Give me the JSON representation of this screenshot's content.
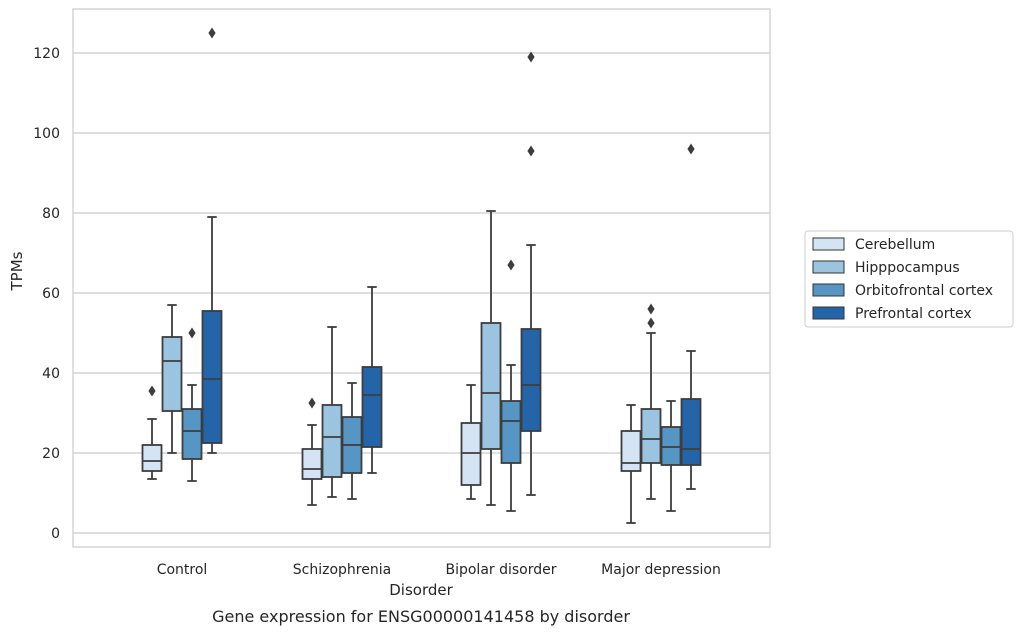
{
  "chart_data": {
    "type": "box",
    "caption": "Gene expression for ENSG00000141458 by disorder",
    "xlabel": "Disorder",
    "ylabel": "TPMs",
    "ylim": [
      -3.5,
      131
    ],
    "yticks": [
      0,
      20,
      40,
      60,
      80,
      100,
      120
    ],
    "grid": "horizontal",
    "legend_position": "right",
    "categories": [
      "Control",
      "Schizophrenia",
      "Bipolar disorder",
      "Major depression"
    ],
    "series": [
      {
        "name": "Cerebellum",
        "color": "#d4e4f4",
        "boxes": [
          {
            "whisker_low": 13.5,
            "q1": 15.5,
            "median": 18,
            "q3": 22,
            "whisker_high": 28.5,
            "outliers": [
              35.5
            ]
          },
          {
            "whisker_low": 7,
            "q1": 13.5,
            "median": 16,
            "q3": 21,
            "whisker_high": 27,
            "outliers": [
              32.5
            ]
          },
          {
            "whisker_low": 8.5,
            "q1": 12,
            "median": 20,
            "q3": 27.5,
            "whisker_high": 37,
            "outliers": []
          },
          {
            "whisker_low": 2.5,
            "q1": 15.5,
            "median": 17.5,
            "q3": 25.5,
            "whisker_high": 32,
            "outliers": []
          }
        ]
      },
      {
        "name": "Hipppocampus",
        "color": "#9ac4df",
        "boxes": [
          {
            "whisker_low": 20,
            "q1": 30.5,
            "median": 43,
            "q3": 49,
            "whisker_high": 57,
            "outliers": []
          },
          {
            "whisker_low": 9,
            "q1": 14,
            "median": 24,
            "q3": 32,
            "whisker_high": 51.5,
            "outliers": []
          },
          {
            "whisker_low": 7,
            "q1": 21,
            "median": 35,
            "q3": 52.5,
            "whisker_high": 80.5,
            "outliers": []
          },
          {
            "whisker_low": 8.5,
            "q1": 17.5,
            "median": 23.5,
            "q3": 31,
            "whisker_high": 50,
            "outliers": [
              52.5,
              56
            ]
          }
        ]
      },
      {
        "name": "Orbitofrontal cortex",
        "color": "#5696c5",
        "boxes": [
          {
            "whisker_low": 13,
            "q1": 18.5,
            "median": 25.5,
            "q3": 31,
            "whisker_high": 37,
            "outliers": [
              50
            ]
          },
          {
            "whisker_low": 8.5,
            "q1": 15,
            "median": 22,
            "q3": 29,
            "whisker_high": 37.5,
            "outliers": []
          },
          {
            "whisker_low": 5.5,
            "q1": 17.5,
            "median": 28,
            "q3": 33,
            "whisker_high": 42,
            "outliers": [
              67
            ]
          },
          {
            "whisker_low": 5.5,
            "q1": 17,
            "median": 21.5,
            "q3": 26.5,
            "whisker_high": 33,
            "outliers": []
          }
        ]
      },
      {
        "name": "Prefrontal cortex",
        "color": "#2464a8",
        "boxes": [
          {
            "whisker_low": 20,
            "q1": 22.5,
            "median": 38.5,
            "q3": 55.5,
            "whisker_high": 79,
            "outliers": [
              125
            ]
          },
          {
            "whisker_low": 15,
            "q1": 21.5,
            "median": 34.5,
            "q3": 41.5,
            "whisker_high": 61.5,
            "outliers": []
          },
          {
            "whisker_low": 9.5,
            "q1": 25.5,
            "median": 37,
            "q3": 51,
            "whisker_high": 72,
            "outliers": [
              95.5,
              119
            ]
          },
          {
            "whisker_low": 11,
            "q1": 17,
            "median": 21,
            "q3": 33.5,
            "whisker_high": 45.5,
            "outliers": [
              96
            ]
          }
        ]
      }
    ]
  }
}
